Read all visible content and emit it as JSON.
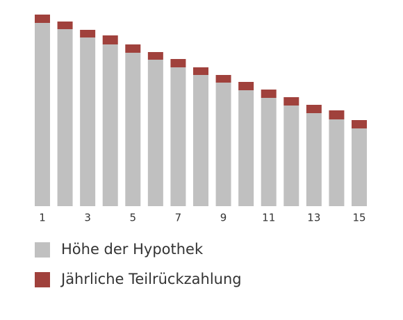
{
  "chart_data": {
    "type": "stacked-bar",
    "categories": [
      "1",
      null,
      "3",
      null,
      "5",
      null,
      "7",
      null,
      "9",
      null,
      "11",
      null,
      "13",
      null,
      "15"
    ],
    "series": [
      {
        "name": "Höhe der Hypothek",
        "color": "#c0c0c0",
        "values": [
          264,
          255,
          243,
          233,
          221,
          211,
          200,
          189,
          178,
          167,
          156,
          145,
          134,
          125,
          112
        ]
      },
      {
        "name": "Jährliche Teilrückzahlung",
        "color": "#a0413c",
        "values": [
          12,
          11,
          11,
          13,
          12,
          11,
          12,
          11,
          11,
          12,
          12,
          12,
          12,
          13,
          12
        ]
      }
    ],
    "ylim": [
      0,
      280
    ]
  }
}
